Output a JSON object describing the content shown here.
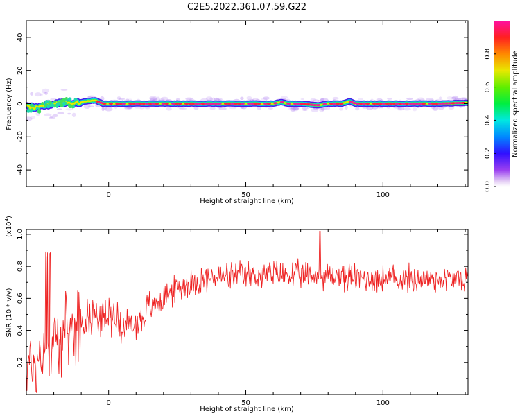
{
  "title": "C2E5.2022.361.07.59.G22",
  "colors": {
    "spectrogram_core": "#ee2040",
    "snr_line": "#ee2222"
  },
  "chart_data": [
    {
      "type": "heatmap",
      "xlabel": "Height of straight line (km)",
      "ylabel": "Frequency (Hz)",
      "xlim": [
        -30,
        131
      ],
      "ylim": [
        -50,
        50
      ],
      "x_ticks": [
        0,
        50,
        100
      ],
      "y_ticks": [
        -40,
        -20,
        0,
        20,
        40
      ],
      "colorbar": {
        "label": "Normalized spectral amplitude",
        "range": [
          0.0,
          1.0
        ],
        "ticks": [
          0.0,
          0.2,
          0.4,
          0.6,
          0.8
        ],
        "tick_labels": [
          "0.0",
          "0.2",
          "0.4",
          "0.6",
          "0.8"
        ],
        "colormap": "rainbow (white-purple-blue-cyan-green-yellow-orange-red-magenta)"
      },
      "ridge": {
        "x": [
          -29,
          -26,
          -23,
          -20,
          -17,
          -14,
          -11,
          -8,
          -5,
          -2,
          5,
          10,
          20,
          30,
          40,
          50,
          60,
          63,
          65,
          70,
          76,
          80,
          85,
          88,
          90,
          100,
          110,
          120,
          131
        ],
        "y": [
          -2,
          -3,
          -1,
          0,
          1,
          0.5,
          0.5,
          1.5,
          2,
          0,
          0,
          0,
          0,
          0,
          0,
          0,
          0,
          1,
          0,
          0,
          -1,
          0,
          0,
          1.5,
          0,
          0,
          0,
          0,
          0.5
        ]
      }
    },
    {
      "type": "line",
      "xlabel": "Height of straight line (km)",
      "ylabel": "SNR (10 * v/v)",
      "yscale_label": "(x10",
      "yscale_exp": "4",
      "xlim": [
        -30,
        131
      ],
      "ylim": [
        0.0,
        1.03
      ],
      "x_ticks": [
        0,
        50,
        100
      ],
      "y_ticks": [
        0.2,
        0.4,
        0.6,
        0.8,
        1.0
      ],
      "series": [
        {
          "trend_x": [
            -30,
            -26,
            -22,
            -18,
            -14,
            -10,
            -6,
            -2,
            2,
            6,
            10,
            14,
            18,
            22,
            26,
            30,
            35,
            40,
            50,
            60,
            70,
            80,
            90,
            100,
            110,
            120,
            131
          ],
          "trend_y": [
            0.18,
            0.2,
            0.3,
            0.35,
            0.4,
            0.46,
            0.5,
            0.48,
            0.5,
            0.42,
            0.44,
            0.52,
            0.58,
            0.63,
            0.67,
            0.7,
            0.72,
            0.73,
            0.74,
            0.75,
            0.74,
            0.74,
            0.73,
            0.72,
            0.72,
            0.72,
            0.72
          ],
          "max": 1.02,
          "max_x": 77
        }
      ]
    }
  ]
}
